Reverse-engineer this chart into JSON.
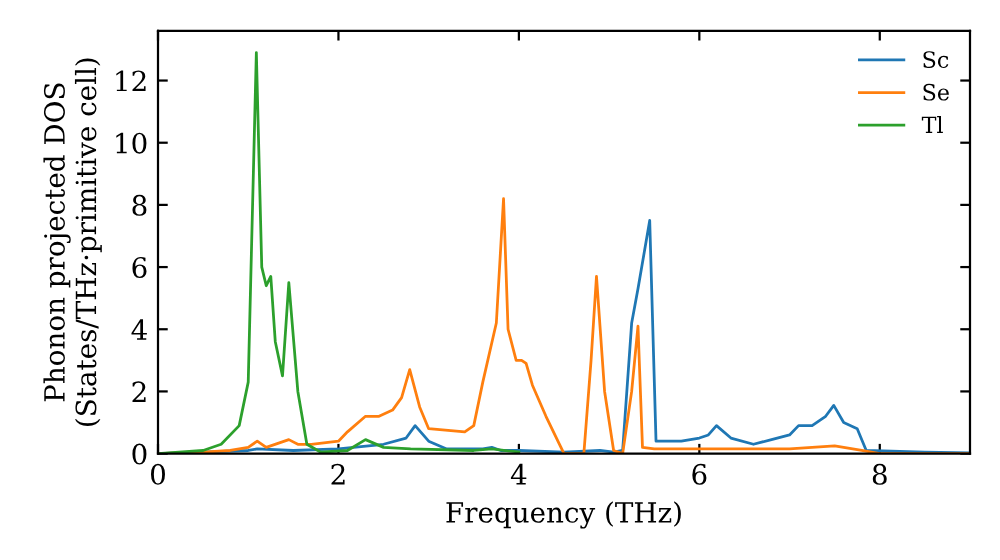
{
  "chart_data": {
    "type": "line",
    "xlabel": "Frequency (THz)",
    "ylabel": "Phonon projected DOS\n(States/THz·primitive cell)",
    "xlim": [
      0,
      9
    ],
    "ylim": [
      0,
      13.6
    ],
    "xticks": [
      0,
      2,
      4,
      6,
      8
    ],
    "yticks": [
      0,
      2,
      4,
      6,
      8,
      10,
      12
    ],
    "legend": "top right",
    "grid": false,
    "series": [
      {
        "name": "Sc",
        "color": "#1f77b4",
        "x": [
          0,
          0.5,
          1.0,
          1.1,
          1.5,
          2.0,
          2.5,
          2.75,
          2.85,
          3.0,
          3.2,
          3.6,
          3.7,
          3.8,
          4.0,
          4.5,
          4.9,
          5.05,
          5.15,
          5.25,
          5.32,
          5.45,
          5.52,
          5.8,
          6.0,
          6.1,
          6.19,
          6.35,
          6.6,
          6.8,
          7.0,
          7.1,
          7.25,
          7.4,
          7.49,
          7.6,
          7.75,
          7.85,
          8.5,
          9.0
        ],
        "values": [
          0,
          0.05,
          0.1,
          0.15,
          0.1,
          0.15,
          0.3,
          0.5,
          0.9,
          0.4,
          0.15,
          0.15,
          0.2,
          0.1,
          0.1,
          0.05,
          0.1,
          0.05,
          0.1,
          4.2,
          5.3,
          7.5,
          0.4,
          0.4,
          0.5,
          0.6,
          0.9,
          0.5,
          0.3,
          0.45,
          0.6,
          0.9,
          0.9,
          1.2,
          1.55,
          1.0,
          0.8,
          0.1,
          0.05,
          0.02
        ]
      },
      {
        "name": "Se",
        "color": "#ff7f0e",
        "x": [
          0,
          0.5,
          0.8,
          1.0,
          1.1,
          1.2,
          1.45,
          1.55,
          1.7,
          2.0,
          2.1,
          2.3,
          2.45,
          2.6,
          2.7,
          2.79,
          2.9,
          3.0,
          3.4,
          3.5,
          3.6,
          3.75,
          3.83,
          3.88,
          3.97,
          4.03,
          4.08,
          4.15,
          4.3,
          4.45,
          4.5,
          4.72,
          4.8,
          4.86,
          4.95,
          5.05,
          5.15,
          5.25,
          5.32,
          5.37,
          5.5,
          6.0,
          7.0,
          7.5,
          7.8,
          8.0,
          9.0
        ],
        "values": [
          0,
          0.05,
          0.1,
          0.2,
          0.4,
          0.2,
          0.45,
          0.3,
          0.3,
          0.4,
          0.7,
          1.2,
          1.2,
          1.4,
          1.8,
          2.7,
          1.5,
          0.8,
          0.7,
          0.9,
          2.3,
          4.2,
          8.2,
          4.0,
          3.0,
          3.0,
          2.9,
          2.2,
          1.2,
          0.3,
          0,
          0,
          3.0,
          5.7,
          2.0,
          0.1,
          0,
          2.0,
          4.1,
          0.2,
          0.15,
          0.15,
          0.15,
          0.25,
          0.1,
          0.0,
          0.0
        ]
      },
      {
        "name": "Tl",
        "color": "#2ca02c",
        "x": [
          0,
          0.5,
          0.7,
          0.9,
          1.0,
          1.09,
          1.15,
          1.2,
          1.25,
          1.3,
          1.38,
          1.45,
          1.55,
          1.65,
          1.8,
          2.1,
          2.3,
          2.5,
          2.8,
          3.5,
          3.7,
          4.0
        ],
        "values": [
          0,
          0.1,
          0.3,
          0.9,
          2.3,
          12.9,
          6.0,
          5.4,
          5.7,
          3.6,
          2.5,
          5.5,
          2.0,
          0.3,
          0.05,
          0.1,
          0.45,
          0.2,
          0.15,
          0.1,
          0.15,
          0.05
        ]
      }
    ]
  }
}
